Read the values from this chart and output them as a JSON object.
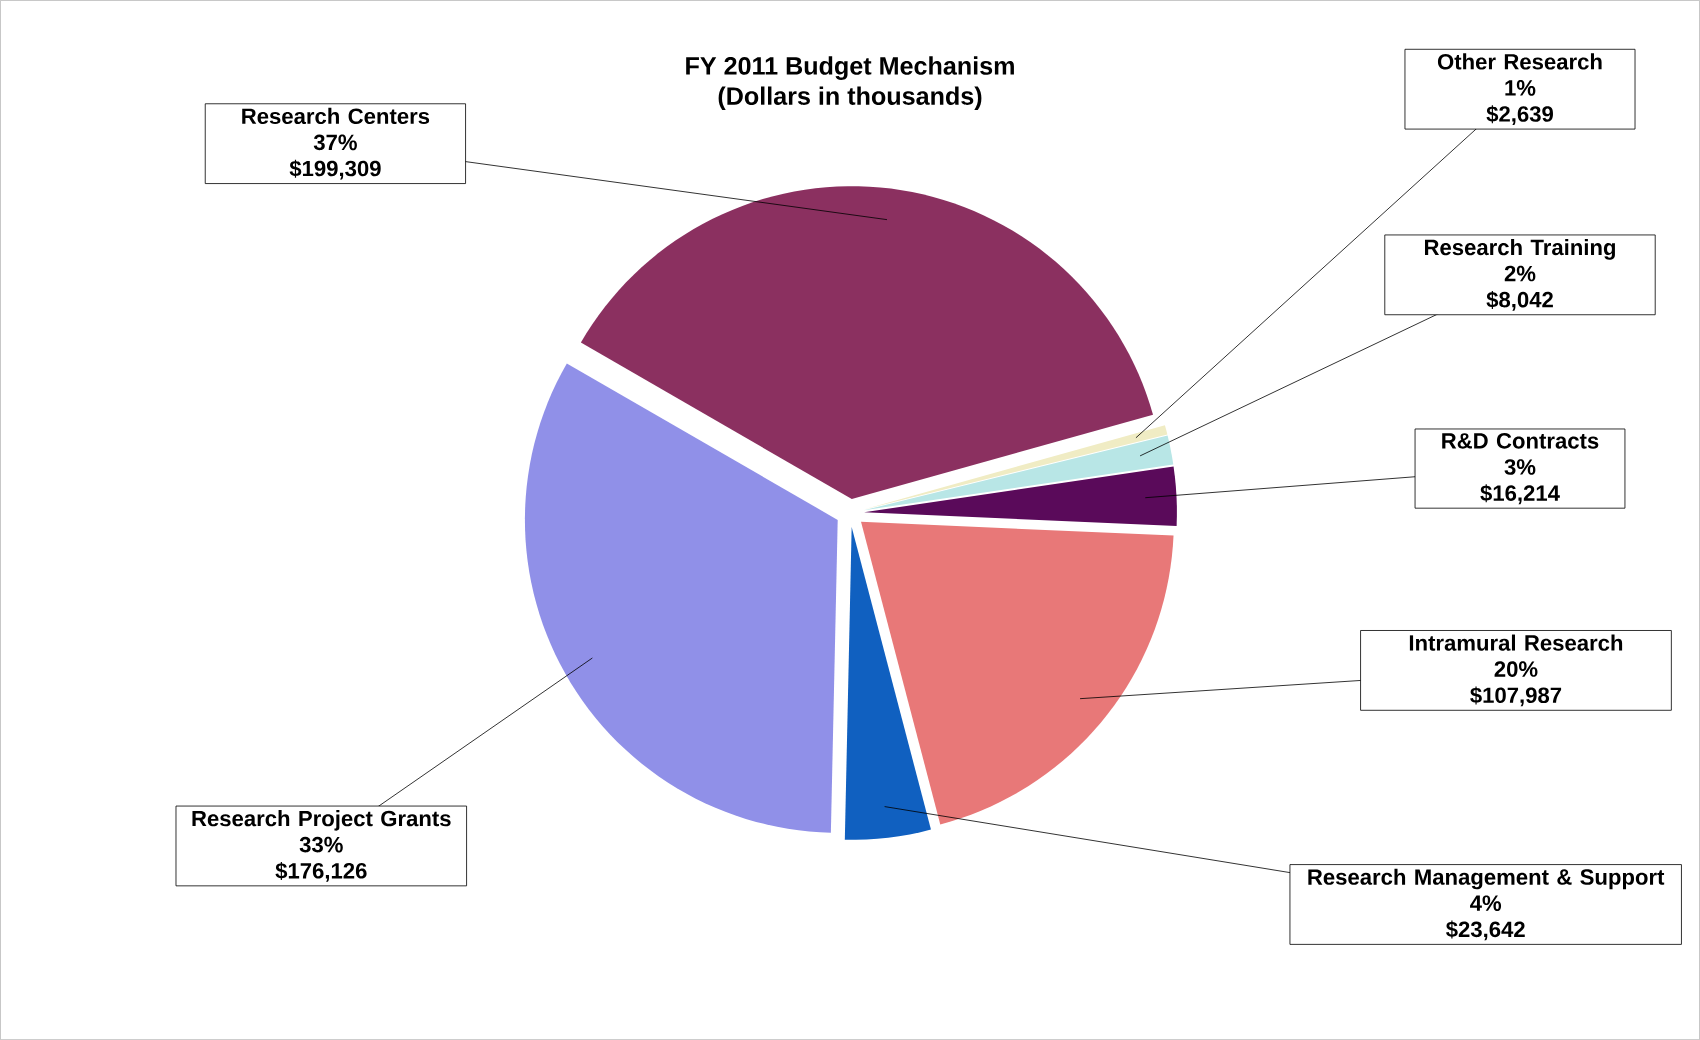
{
  "chart_data": {
    "type": "pie",
    "title": "FY 2011 Budget Mechanism",
    "subtitle": "(Dollars in thousands)",
    "categories": [
      "Research Centers",
      "Other Research",
      "Research Training",
      "R&D Contracts",
      "Intramural Research",
      "Research Management & Support",
      "Research Project Grants"
    ],
    "values": [
      199309,
      2639,
      8042,
      16214,
      107987,
      23642,
      176126
    ],
    "colors": [
      "#8b3060",
      "#f0ecc4",
      "#b8e6e6",
      "#5a0a5a",
      "#e87878",
      "#1060c0",
      "#9090e8"
    ],
    "value_labels": [
      "$199,309",
      "$2,639",
      "$8,042",
      "$16,214",
      "$107,987",
      "$23,642",
      "$176,126"
    ],
    "annotations": [
      "37%",
      "1%",
      "2%",
      "3%",
      "20%",
      "4%",
      "33%"
    ]
  }
}
